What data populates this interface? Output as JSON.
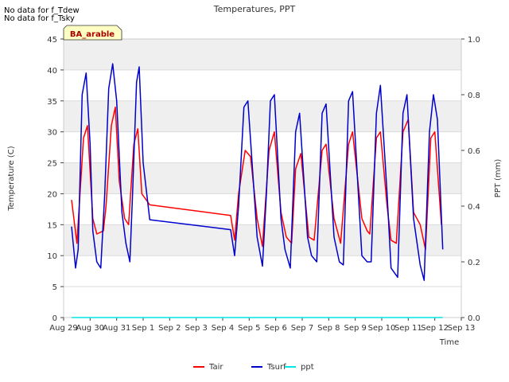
{
  "notes": [
    "No data for f_Tdew",
    "No data for f_Tsky"
  ],
  "chart_data": {
    "type": "line",
    "title": "Temperatures, PPT",
    "xlabel": "Time",
    "ylabel": "Temperature (C)",
    "y2label": "PPT (mm)",
    "site_label": "BA_arable",
    "x_ticks": [
      "Aug 29",
      "Aug 30",
      "Aug 31",
      "Sep 1",
      "Sep 2",
      "Sep 3",
      "Sep 4",
      "Sep 5",
      "Sep 6",
      "Sep 7",
      "Sep 8",
      "Sep 9",
      "Sep 10",
      "Sep 11",
      "Sep 12",
      "Sep 13"
    ],
    "xlim_days": [
      0,
      15
    ],
    "ylim": [
      0,
      45
    ],
    "y_ticks": [
      0,
      5,
      10,
      15,
      20,
      25,
      30,
      35,
      40,
      45
    ],
    "y2lim": [
      0,
      1.0
    ],
    "y2_ticks": [
      "0.0",
      "0.2",
      "0.4",
      "0.6",
      "0.8",
      "1.0"
    ],
    "shaded_bands": [
      [
        10,
        15
      ],
      [
        20,
        25
      ],
      [
        30,
        35
      ],
      [
        40,
        45
      ]
    ],
    "grid": true,
    "legend_position": "bottom-center",
    "series": [
      {
        "name": "Tair",
        "color": "#ff0000",
        "points": [
          [
            0.3,
            19
          ],
          [
            0.5,
            12
          ],
          [
            0.75,
            29
          ],
          [
            0.9,
            31
          ],
          [
            1.1,
            16
          ],
          [
            1.25,
            13.5
          ],
          [
            1.5,
            14
          ],
          [
            1.6,
            18
          ],
          [
            1.8,
            31
          ],
          [
            1.95,
            34
          ],
          [
            2.1,
            22
          ],
          [
            2.3,
            16
          ],
          [
            2.45,
            15
          ],
          [
            2.65,
            28
          ],
          [
            2.8,
            30.5
          ],
          [
            2.95,
            20
          ],
          [
            3.25,
            18.2
          ],
          [
            6.3,
            16.5
          ],
          [
            6.45,
            12.5
          ],
          [
            6.6,
            20
          ],
          [
            6.85,
            27
          ],
          [
            7.05,
            26
          ],
          [
            7.3,
            16
          ],
          [
            7.5,
            11.5
          ],
          [
            7.75,
            27
          ],
          [
            7.95,
            30
          ],
          [
            8.2,
            17
          ],
          [
            8.4,
            13
          ],
          [
            8.6,
            12
          ],
          [
            8.75,
            24
          ],
          [
            8.95,
            26.5
          ],
          [
            9.25,
            13
          ],
          [
            9.45,
            12.5
          ],
          [
            9.75,
            27
          ],
          [
            9.9,
            28
          ],
          [
            10.2,
            16
          ],
          [
            10.45,
            12
          ],
          [
            10.75,
            28
          ],
          [
            10.9,
            30
          ],
          [
            11.25,
            16
          ],
          [
            11.45,
            14
          ],
          [
            11.55,
            13.5
          ],
          [
            11.8,
            29
          ],
          [
            11.95,
            30
          ],
          [
            12.2,
            18
          ],
          [
            12.35,
            12.5
          ],
          [
            12.55,
            12
          ],
          [
            12.8,
            30
          ],
          [
            13.0,
            32
          ],
          [
            13.2,
            17
          ],
          [
            13.45,
            15
          ],
          [
            13.65,
            11
          ],
          [
            13.85,
            29
          ],
          [
            14.0,
            30
          ],
          [
            14.25,
            15
          ]
        ]
      },
      {
        "name": "Tsurf",
        "color": "#0000cc",
        "points": [
          [
            0.3,
            14.7
          ],
          [
            0.45,
            8
          ],
          [
            0.55,
            11
          ],
          [
            0.7,
            36
          ],
          [
            0.85,
            39.5
          ],
          [
            1.0,
            28
          ],
          [
            1.1,
            14
          ],
          [
            1.25,
            9
          ],
          [
            1.4,
            8
          ],
          [
            1.55,
            20
          ],
          [
            1.7,
            37
          ],
          [
            1.85,
            41
          ],
          [
            2.0,
            35
          ],
          [
            2.2,
            17
          ],
          [
            2.35,
            12
          ],
          [
            2.5,
            9
          ],
          [
            2.6,
            20
          ],
          [
            2.75,
            38
          ],
          [
            2.85,
            40.5
          ],
          [
            3.0,
            25
          ],
          [
            3.25,
            15.8
          ],
          [
            6.3,
            14.2
          ],
          [
            6.45,
            10
          ],
          [
            6.6,
            18
          ],
          [
            6.8,
            34
          ],
          [
            6.95,
            35
          ],
          [
            7.3,
            13
          ],
          [
            7.5,
            8.3
          ],
          [
            7.65,
            20
          ],
          [
            7.8,
            35
          ],
          [
            7.95,
            36
          ],
          [
            8.2,
            16
          ],
          [
            8.35,
            11
          ],
          [
            8.55,
            8
          ],
          [
            8.75,
            30
          ],
          [
            8.9,
            33
          ],
          [
            9.2,
            13
          ],
          [
            9.35,
            10
          ],
          [
            9.55,
            9
          ],
          [
            9.75,
            33
          ],
          [
            9.9,
            34.5
          ],
          [
            10.2,
            13
          ],
          [
            10.4,
            9
          ],
          [
            10.55,
            8.5
          ],
          [
            10.75,
            35
          ],
          [
            10.9,
            36.5
          ],
          [
            11.25,
            10
          ],
          [
            11.45,
            9
          ],
          [
            11.6,
            9
          ],
          [
            11.8,
            33
          ],
          [
            11.95,
            37.5
          ],
          [
            12.2,
            20
          ],
          [
            12.35,
            8
          ],
          [
            12.6,
            6.5
          ],
          [
            12.8,
            33
          ],
          [
            12.95,
            36
          ],
          [
            13.2,
            16
          ],
          [
            13.45,
            8.5
          ],
          [
            13.6,
            6
          ],
          [
            13.8,
            30
          ],
          [
            13.95,
            36
          ],
          [
            14.1,
            32
          ],
          [
            14.3,
            11
          ]
        ]
      },
      {
        "name": "ppt",
        "color": "#00e5e5",
        "points": [
          [
            0.3,
            0
          ],
          [
            14.3,
            0
          ]
        ]
      }
    ]
  }
}
